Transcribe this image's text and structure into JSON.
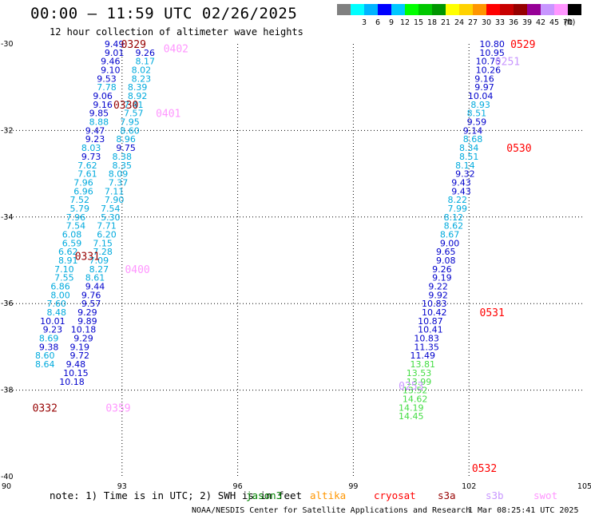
{
  "title": "00:00 – 11:59 UTC 02/26/2025",
  "subtitle": "12 hour collection of altimeter wave heights",
  "colorbar": {
    "unit": "(ft)",
    "bins": [
      {
        "label": "",
        "color": "#808080"
      },
      {
        "label": "3",
        "color": "#00ffff"
      },
      {
        "label": "6",
        "color": "#00b4ff"
      },
      {
        "label": "9",
        "color": "#0000ff"
      },
      {
        "label": "12",
        "color": "#00c8ff"
      },
      {
        "label": "15",
        "color": "#00ff00"
      },
      {
        "label": "18",
        "color": "#00c800"
      },
      {
        "label": "21",
        "color": "#009600"
      },
      {
        "label": "24",
        "color": "#ffff00"
      },
      {
        "label": "27",
        "color": "#ffd200"
      },
      {
        "label": "30",
        "color": "#ff9600"
      },
      {
        "label": "33",
        "color": "#ff0000"
      },
      {
        "label": "36",
        "color": "#c80000"
      },
      {
        "label": "39",
        "color": "#960000"
      },
      {
        "label": "42",
        "color": "#960096"
      },
      {
        "label": "45",
        "color": "#c896ff"
      },
      {
        "label": "70",
        "color": "#ff96ff"
      },
      {
        "label": "",
        "color": "#000000"
      }
    ]
  },
  "note": "note:  1) Time is in UTC; 2) SWH is in feet",
  "satellites": [
    {
      "name": "jason3",
      "color": "#008000"
    },
    {
      "name": "altika",
      "color": "#ff9600"
    },
    {
      "name": "cryosat",
      "color": "#ff0000"
    },
    {
      "name": "s3a",
      "color": "#960000"
    },
    {
      "name": "s3b",
      "color": "#c896ff"
    },
    {
      "name": "swot",
      "color": "#ff96ff"
    }
  ],
  "footer": "NOAA/NESDIS Center for Satellite Applications and Research",
  "timestamp": "1 Mar 08:25:41 UTC 2025",
  "chart_data": {
    "type": "scatter",
    "xlim": [
      90,
      105
    ],
    "ylim": [
      -40,
      -30
    ],
    "xticks": [
      90,
      93,
      96,
      99,
      102,
      105
    ],
    "yticks": [
      -30,
      -32,
      -34,
      -36,
      -38,
      -40
    ],
    "grid": true,
    "series": [
      {
        "name": "track-0329-0331",
        "color": "#0000ff",
        "points": [
          {
            "x": 92.8,
            "y": -30.0,
            "v": "9.49"
          },
          {
            "x": 92.8,
            "y": -30.2,
            "v": "9.01"
          },
          {
            "x": 92.7,
            "y": -30.4,
            "v": "9.46"
          },
          {
            "x": 92.7,
            "y": -30.6,
            "v": "9.10"
          },
          {
            "x": 92.6,
            "y": -30.8,
            "v": "9.53"
          },
          {
            "x": 92.6,
            "y": -31.0,
            "v": "7.78"
          },
          {
            "x": 92.5,
            "y": -31.2,
            "v": "9.06"
          },
          {
            "x": 92.5,
            "y": -31.4,
            "v": "9.16"
          },
          {
            "x": 92.4,
            "y": -31.6,
            "v": "9.85"
          },
          {
            "x": 92.4,
            "y": -31.8,
            "v": "8.88"
          },
          {
            "x": 92.3,
            "y": -32.0,
            "v": "9.47"
          },
          {
            "x": 92.3,
            "y": -32.2,
            "v": "9.23"
          },
          {
            "x": 92.2,
            "y": -32.4,
            "v": "8.03"
          },
          {
            "x": 92.2,
            "y": -32.6,
            "v": "9.73"
          },
          {
            "x": 92.1,
            "y": -32.8,
            "v": "7.62"
          },
          {
            "x": 92.1,
            "y": -33.0,
            "v": "7.61"
          },
          {
            "x": 92.0,
            "y": -33.2,
            "v": "7.96"
          },
          {
            "x": 92.0,
            "y": -33.4,
            "v": "6.96"
          },
          {
            "x": 91.9,
            "y": -33.6,
            "v": "7.52"
          },
          {
            "x": 91.9,
            "y": -33.8,
            "v": "5.79"
          },
          {
            "x": 91.8,
            "y": -34.0,
            "v": "7.96"
          },
          {
            "x": 91.8,
            "y": -34.2,
            "v": "7.54"
          },
          {
            "x": 91.7,
            "y": -34.4,
            "v": "6.08"
          },
          {
            "x": 91.7,
            "y": -34.6,
            "v": "6.59"
          },
          {
            "x": 91.6,
            "y": -34.8,
            "v": "6.62"
          },
          {
            "x": 91.6,
            "y": -35.0,
            "v": "8.91"
          },
          {
            "x": 91.5,
            "y": -35.2,
            "v": "7.10"
          },
          {
            "x": 91.5,
            "y": -35.4,
            "v": "7.55"
          },
          {
            "x": 91.4,
            "y": -35.6,
            "v": "6.86"
          },
          {
            "x": 91.4,
            "y": -35.8,
            "v": "8.00"
          },
          {
            "x": 91.3,
            "y": -36.0,
            "v": "7.60"
          },
          {
            "x": 91.3,
            "y": -36.2,
            "v": "8.48"
          },
          {
            "x": 91.2,
            "y": -36.4,
            "v": "10.01"
          },
          {
            "x": 91.2,
            "y": -36.6,
            "v": "9.23"
          },
          {
            "x": 91.1,
            "y": -36.8,
            "v": "8.69"
          },
          {
            "x": 91.1,
            "y": -37.0,
            "v": "9.38"
          },
          {
            "x": 91.0,
            "y": -37.2,
            "v": "8.60"
          },
          {
            "x": 91.0,
            "y": -37.4,
            "v": "8.64"
          }
        ]
      },
      {
        "name": "track-0330-0332",
        "color": "#0000ff",
        "points": [
          {
            "x": 93.6,
            "y": -30.2,
            "v": "9.26"
          },
          {
            "x": 93.6,
            "y": -30.4,
            "v": "8.17"
          },
          {
            "x": 93.5,
            "y": -30.6,
            "v": "8.02"
          },
          {
            "x": 93.5,
            "y": -30.8,
            "v": "8.23"
          },
          {
            "x": 93.4,
            "y": -31.0,
            "v": "8.39"
          },
          {
            "x": 93.4,
            "y": -31.2,
            "v": "8.92"
          },
          {
            "x": 93.3,
            "y": -31.4,
            "v": "7.41"
          },
          {
            "x": 93.3,
            "y": -31.6,
            "v": "7.57"
          },
          {
            "x": 93.2,
            "y": -31.8,
            "v": "7.95"
          },
          {
            "x": 93.2,
            "y": -32.0,
            "v": "8.60"
          },
          {
            "x": 93.1,
            "y": -32.2,
            "v": "8.96"
          },
          {
            "x": 93.1,
            "y": -32.4,
            "v": "9.75"
          },
          {
            "x": 93.0,
            "y": -32.6,
            "v": "8.38"
          },
          {
            "x": 93.0,
            "y": -32.8,
            "v": "8.35"
          },
          {
            "x": 92.9,
            "y": -33.0,
            "v": "8.09"
          },
          {
            "x": 92.9,
            "y": -33.2,
            "v": "7.37"
          },
          {
            "x": 92.8,
            "y": -33.4,
            "v": "7.11"
          },
          {
            "x": 92.8,
            "y": -33.6,
            "v": "7.90"
          },
          {
            "x": 92.7,
            "y": -33.8,
            "v": "7.54"
          },
          {
            "x": 92.7,
            "y": -34.0,
            "v": "5.30"
          },
          {
            "x": 92.6,
            "y": -34.2,
            "v": "7.71"
          },
          {
            "x": 92.6,
            "y": -34.4,
            "v": "6.20"
          },
          {
            "x": 92.5,
            "y": -34.6,
            "v": "7.15"
          },
          {
            "x": 92.5,
            "y": -34.8,
            "v": "7.28"
          },
          {
            "x": 92.4,
            "y": -35.0,
            "v": "7.09"
          },
          {
            "x": 92.4,
            "y": -35.2,
            "v": "8.27"
          },
          {
            "x": 92.3,
            "y": -35.4,
            "v": "8.61"
          },
          {
            "x": 92.3,
            "y": -35.6,
            "v": "9.44"
          },
          {
            "x": 92.2,
            "y": -35.8,
            "v": "9.76"
          },
          {
            "x": 92.2,
            "y": -36.0,
            "v": "9.57"
          },
          {
            "x": 92.1,
            "y": -36.2,
            "v": "9.29"
          },
          {
            "x": 92.1,
            "y": -36.4,
            "v": "9.89"
          },
          {
            "x": 92.0,
            "y": -36.6,
            "v": "10.18"
          },
          {
            "x": 92.0,
            "y": -36.8,
            "v": "9.29"
          },
          {
            "x": 91.9,
            "y": -37.0,
            "v": "9.19"
          },
          {
            "x": 91.9,
            "y": -37.2,
            "v": "9.72"
          },
          {
            "x": 91.8,
            "y": -37.4,
            "v": "9.48"
          },
          {
            "x": 91.8,
            "y": -37.6,
            "v": "10.15"
          },
          {
            "x": 91.7,
            "y": -37.8,
            "v": "10.18"
          }
        ]
      }
    ],
    "track_labels": [
      {
        "text": "0329",
        "x": 93.3,
        "y": -30.0,
        "color": "#960000"
      },
      {
        "text": "0402",
        "x": 94.4,
        "y": -30.1,
        "color": "#ff96ff"
      },
      {
        "text": "0330",
        "x": 93.1,
        "y": -31.4,
        "color": "#960000"
      },
      {
        "text": "0401",
        "x": 94.2,
        "y": -31.6,
        "color": "#ff96ff"
      },
      {
        "text": "0331",
        "x": 92.1,
        "y": -34.9,
        "color": "#960000"
      },
      {
        "text": "0400",
        "x": 93.4,
        "y": -35.2,
        "color": "#ff96ff"
      },
      {
        "text": "0332",
        "x": 91.0,
        "y": -38.4,
        "color": "#960000"
      },
      {
        "text": "0359",
        "x": 92.9,
        "y": -38.4,
        "color": "#ff96ff"
      },
      {
        "text": "0529",
        "x": 103.4,
        "y": -30.0,
        "color": "#ff0000"
      },
      {
        "text": "0251",
        "x": 103.0,
        "y": -30.4,
        "color": "#c896ff"
      },
      {
        "text": "0530",
        "x": 103.3,
        "y": -32.4,
        "color": "#ff0000"
      },
      {
        "text": "0531",
        "x": 102.6,
        "y": -36.2,
        "color": "#ff0000"
      },
      {
        "text": "0253",
        "x": 100.5,
        "y": -37.9,
        "color": "#c896ff"
      },
      {
        "text": "0532",
        "x": 102.4,
        "y": -39.8,
        "color": "#ff0000"
      }
    ],
    "right_tracks": [
      {
        "color": "#0000ff",
        "points": [
          {
            "x": 102.6,
            "y": -30.0,
            "v": "10.80"
          },
          {
            "x": 102.6,
            "y": -30.2,
            "v": "10.95"
          },
          {
            "x": 102.5,
            "y": -30.4,
            "v": "10.75"
          },
          {
            "x": 102.5,
            "y": -30.6,
            "v": "10.26"
          },
          {
            "x": 102.4,
            "y": -30.8,
            "v": "9.16"
          },
          {
            "x": 102.4,
            "y": -31.0,
            "v": "9.97"
          },
          {
            "x": 102.3,
            "y": -31.2,
            "v": "10.04"
          },
          {
            "x": 102.3,
            "y": -31.4,
            "v": "8.93"
          },
          {
            "x": 102.2,
            "y": -31.6,
            "v": "8.51"
          },
          {
            "x": 102.2,
            "y": -31.8,
            "v": "9.59"
          },
          {
            "x": 102.1,
            "y": -32.0,
            "v": "9.14"
          },
          {
            "x": 102.1,
            "y": -32.2,
            "v": "8.68"
          },
          {
            "x": 102.0,
            "y": -32.4,
            "v": "8.34"
          },
          {
            "x": 102.0,
            "y": -32.6,
            "v": "8.51"
          },
          {
            "x": 101.9,
            "y": -32.8,
            "v": "8.14"
          },
          {
            "x": 101.9,
            "y": -33.0,
            "v": "9.32"
          },
          {
            "x": 101.8,
            "y": -33.2,
            "v": "9.43"
          },
          {
            "x": 101.8,
            "y": -33.4,
            "v": "9.43"
          },
          {
            "x": 101.7,
            "y": -33.6,
            "v": "8.22"
          },
          {
            "x": 101.7,
            "y": -33.8,
            "v": "7.99"
          },
          {
            "x": 101.6,
            "y": -34.0,
            "v": "8.12"
          },
          {
            "x": 101.6,
            "y": -34.2,
            "v": "8.62"
          },
          {
            "x": 101.5,
            "y": -34.4,
            "v": "8.67"
          },
          {
            "x": 101.5,
            "y": -34.6,
            "v": "9.00"
          },
          {
            "x": 101.4,
            "y": -34.8,
            "v": "9.65"
          },
          {
            "x": 101.4,
            "y": -35.0,
            "v": "9.08"
          },
          {
            "x": 101.3,
            "y": -35.2,
            "v": "9.26"
          },
          {
            "x": 101.3,
            "y": -35.4,
            "v": "9.19"
          },
          {
            "x": 101.2,
            "y": -35.6,
            "v": "9.22"
          },
          {
            "x": 101.2,
            "y": -35.8,
            "v": "9.92"
          },
          {
            "x": 101.1,
            "y": -36.0,
            "v": "10.83"
          },
          {
            "x": 101.1,
            "y": -36.2,
            "v": "10.42"
          },
          {
            "x": 101.0,
            "y": -36.4,
            "v": "10.87"
          },
          {
            "x": 101.0,
            "y": -36.6,
            "v": "10.41"
          },
          {
            "x": 100.9,
            "y": -36.8,
            "v": "10.83"
          },
          {
            "x": 100.9,
            "y": -37.0,
            "v": "11.35"
          },
          {
            "x": 100.8,
            "y": -37.2,
            "v": "11.49"
          },
          {
            "x": 100.8,
            "y": -37.4,
            "v": "13.81"
          },
          {
            "x": 100.7,
            "y": -37.6,
            "v": "13.53"
          },
          {
            "x": 100.7,
            "y": -37.8,
            "v": "13.99"
          },
          {
            "x": 100.6,
            "y": -38.0,
            "v": "13.52"
          },
          {
            "x": 100.6,
            "y": -38.2,
            "v": "14.62"
          },
          {
            "x": 100.5,
            "y": -38.4,
            "v": "14.19"
          },
          {
            "x": 100.5,
            "y": -38.6,
            "v": "14.45"
          }
        ]
      }
    ]
  }
}
